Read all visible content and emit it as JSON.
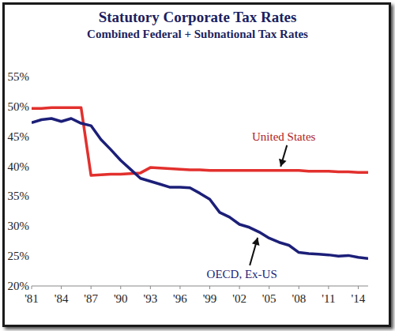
{
  "chart_data": {
    "type": "line",
    "title": "Statutory Corporate Tax Rates",
    "subtitle": "Combined Federal + Subnational Tax Rates",
    "annotations": [
      "United States",
      "OECD, Ex-US"
    ],
    "x": [
      1981,
      1982,
      1983,
      1984,
      1985,
      1986,
      1987,
      1988,
      1989,
      1990,
      1991,
      1992,
      1993,
      1994,
      1995,
      1996,
      1997,
      1998,
      1999,
      2000,
      2001,
      2002,
      2003,
      2004,
      2005,
      2006,
      2007,
      2008,
      2009,
      2010,
      2011,
      2012,
      2013,
      2014,
      2015
    ],
    "series": [
      {
        "name": "United States",
        "color": "#e2302d",
        "line_style": "solid",
        "values": [
          49.7,
          49.7,
          49.8,
          49.8,
          49.8,
          49.8,
          38.5,
          38.6,
          38.7,
          38.7,
          38.8,
          38.9,
          39.8,
          39.7,
          39.6,
          39.5,
          39.4,
          39.4,
          39.3,
          39.3,
          39.3,
          39.3,
          39.3,
          39.3,
          39.3,
          39.3,
          39.3,
          39.3,
          39.2,
          39.2,
          39.2,
          39.1,
          39.1,
          39.0,
          39.0
        ]
      },
      {
        "name": "OECD, Ex-US",
        "color": "#1c1f78",
        "line_style": "solid",
        "values": [
          47.3,
          47.8,
          48.0,
          47.5,
          48.0,
          47.2,
          46.8,
          44.5,
          42.8,
          41.0,
          39.5,
          38.0,
          37.5,
          37.0,
          36.5,
          36.5,
          36.4,
          35.5,
          34.5,
          32.3,
          31.5,
          30.3,
          29.8,
          29.0,
          28.0,
          27.3,
          26.8,
          25.6,
          25.4,
          25.3,
          25.2,
          25.0,
          25.1,
          24.8,
          24.6
        ]
      }
    ],
    "xlim": [
      1981,
      2015
    ],
    "xticks": [
      {
        "value": 1981,
        "label": "'81"
      },
      {
        "value": 1984,
        "label": "'84"
      },
      {
        "value": 1987,
        "label": "'87"
      },
      {
        "value": 1990,
        "label": "'90"
      },
      {
        "value": 1993,
        "label": "'93"
      },
      {
        "value": 1996,
        "label": "'96"
      },
      {
        "value": 1999,
        "label": "'99"
      },
      {
        "value": 2002,
        "label": "'02"
      },
      {
        "value": 2005,
        "label": "'05"
      },
      {
        "value": 2008,
        "label": "'08"
      },
      {
        "value": 2011,
        "label": "'11"
      },
      {
        "value": 2014,
        "label": "'14"
      }
    ],
    "ylim": [
      20,
      55
    ],
    "yticks": [
      {
        "value": 20,
        "label": "20%"
      },
      {
        "value": 25,
        "label": "25%"
      },
      {
        "value": 30,
        "label": "30%"
      },
      {
        "value": 35,
        "label": "35%"
      },
      {
        "value": 40,
        "label": "40%"
      },
      {
        "value": 45,
        "label": "45%"
      },
      {
        "value": 50,
        "label": "50%"
      },
      {
        "value": 55,
        "label": "55%"
      }
    ],
    "grid": false
  }
}
